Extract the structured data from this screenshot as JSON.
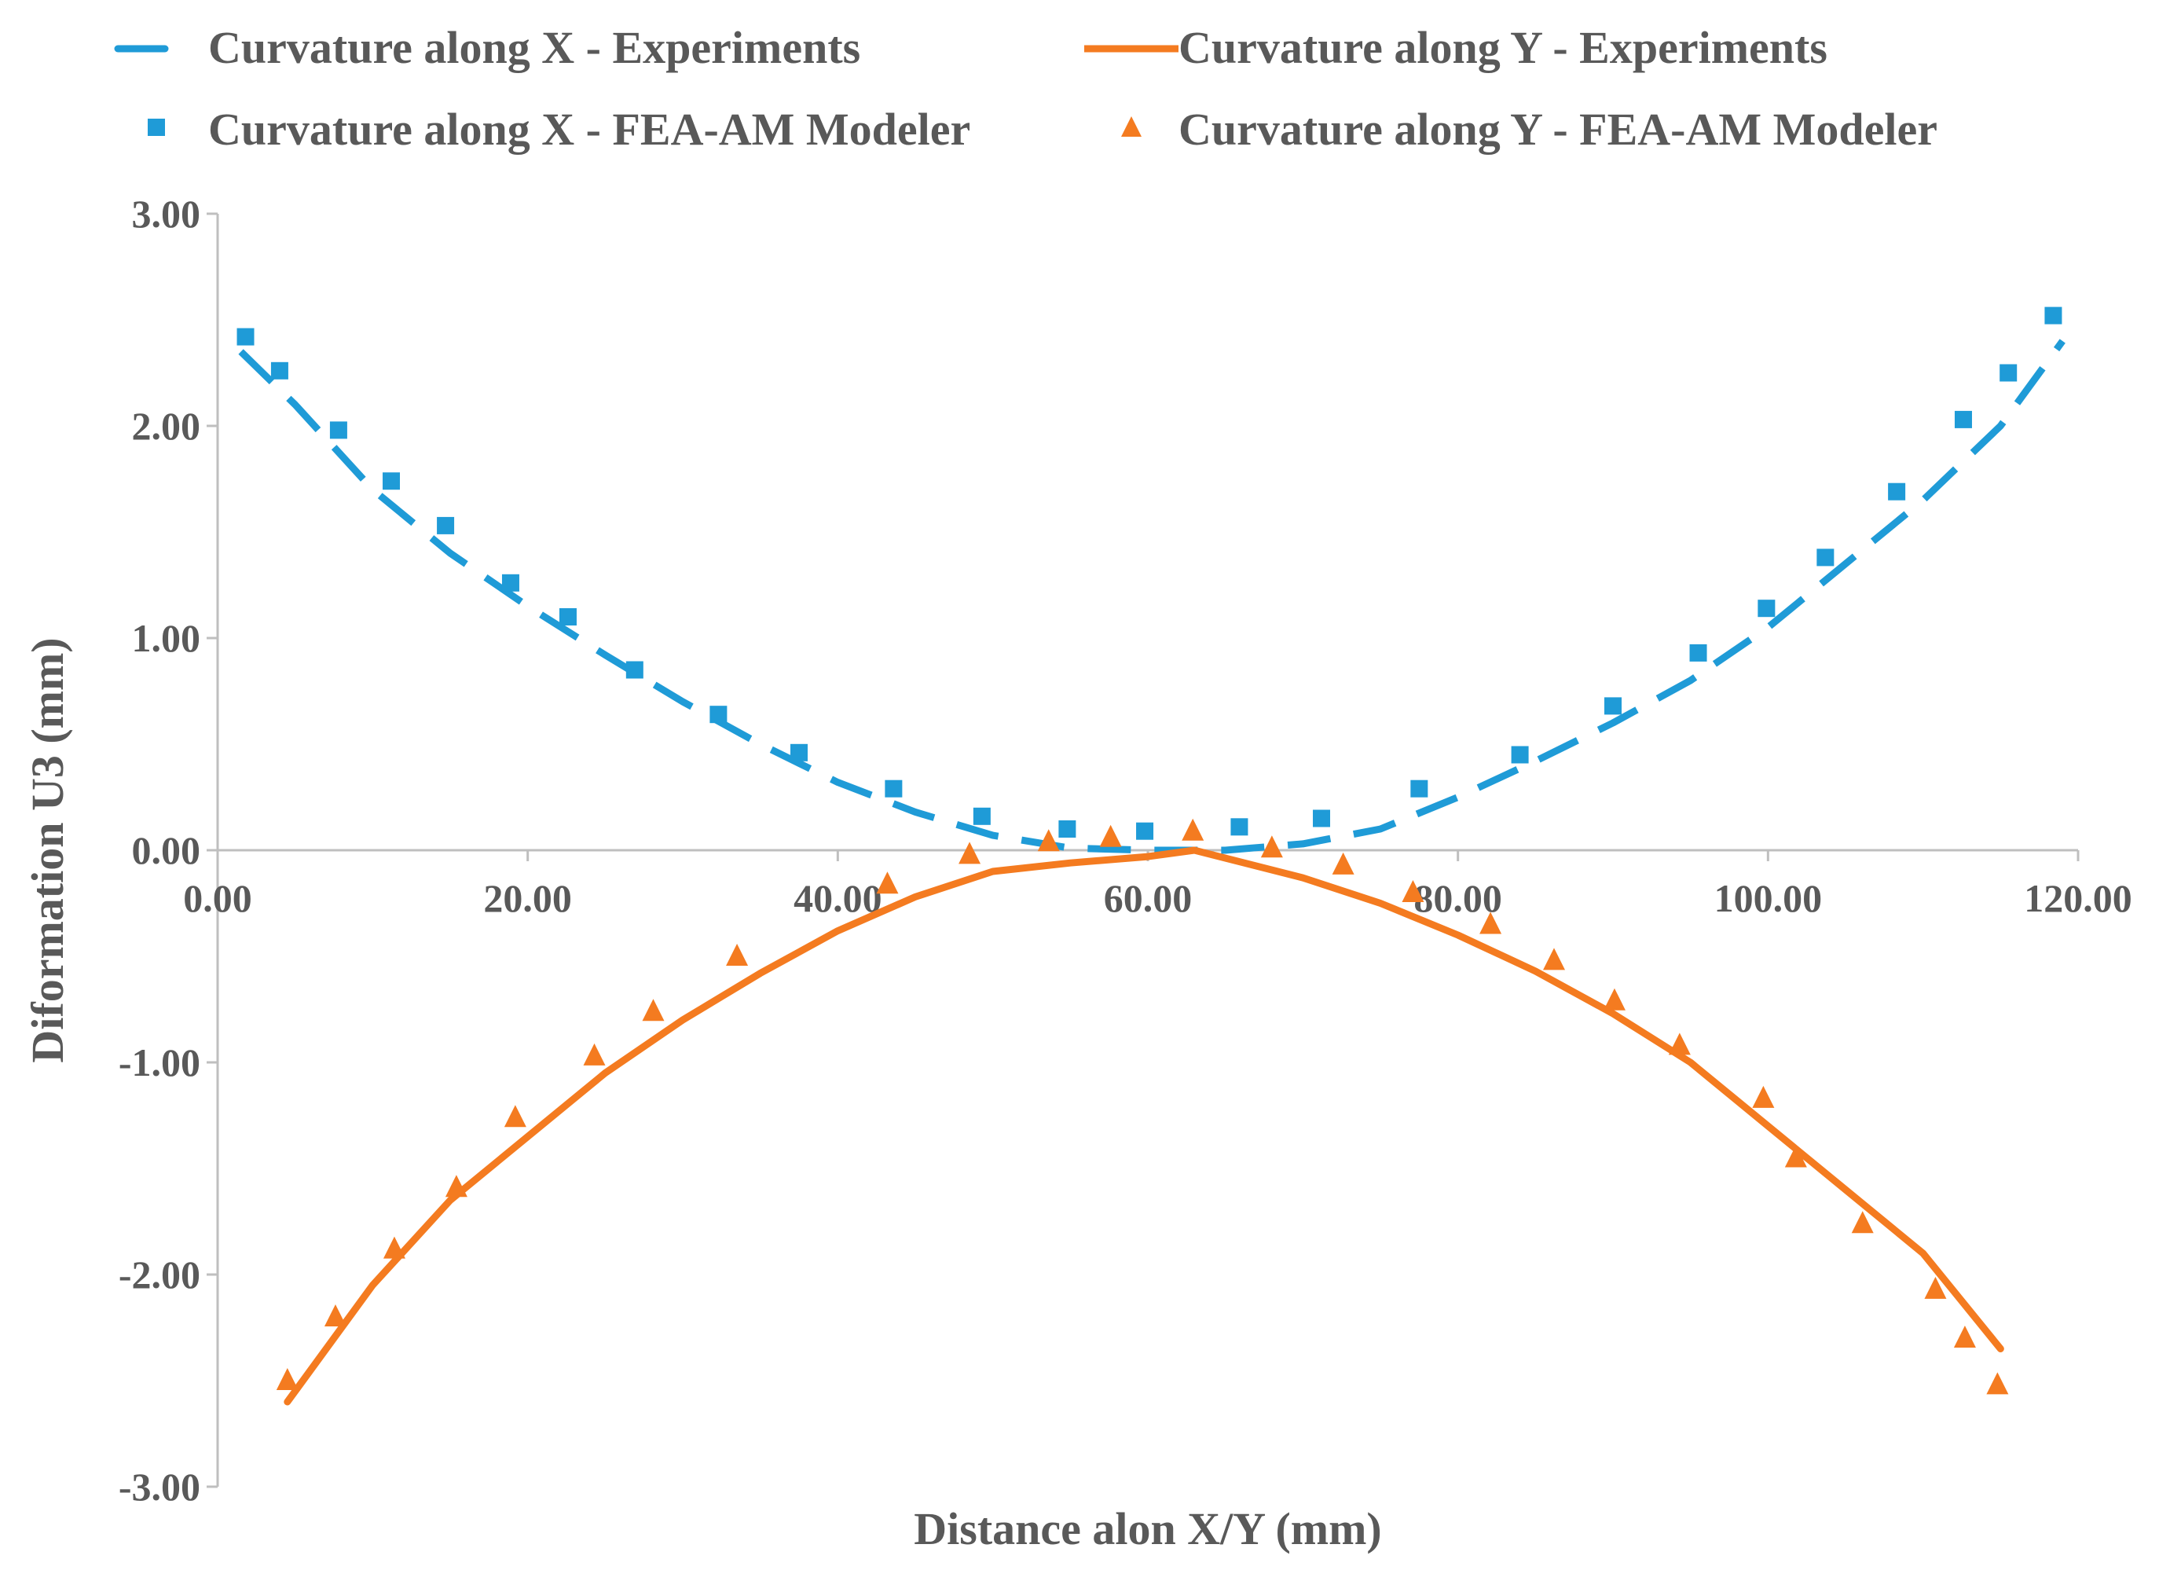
{
  "chart_data": {
    "type": "line",
    "title": "",
    "xlabel": "Distance alon X/Y (mm)",
    "ylabel": "Diformation U3 (mm)",
    "xlim": [
      0,
      120
    ],
    "ylim": [
      -3,
      3
    ],
    "x_ticks": [
      0,
      20,
      40,
      60,
      80,
      100,
      120
    ],
    "x_tick_labels": [
      "0.00",
      "20.00",
      "40.00",
      "60.00",
      "80.00",
      "100.00",
      "120.00"
    ],
    "y_ticks": [
      3,
      2,
      1,
      0,
      -1,
      -2,
      -3
    ],
    "y_tick_labels": [
      "3.00",
      "2.00",
      "1.00",
      "0.00",
      "-1.00",
      "-2.00",
      "-3.00"
    ],
    "grid": false,
    "legend_position": "top",
    "series": [
      {
        "name": "Curvature along X - Experiments",
        "style": "dashed-line",
        "color": "#1F9BD7",
        "x": [
          1.5,
          5,
          10,
          15,
          20,
          25,
          30,
          35,
          40,
          45,
          50,
          55,
          60,
          65,
          70,
          75,
          80,
          85,
          90,
          95,
          100,
          105,
          110,
          115,
          119
        ],
        "y": [
          2.35,
          2.1,
          1.7,
          1.4,
          1.15,
          0.92,
          0.7,
          0.5,
          0.32,
          0.18,
          0.07,
          0.01,
          0.0,
          0.0,
          0.03,
          0.1,
          0.25,
          0.42,
          0.6,
          0.8,
          1.05,
          1.35,
          1.65,
          2.0,
          2.4
        ]
      },
      {
        "name": "Curvature along Y - Experiments",
        "style": "solid-line",
        "color": "#F47B20",
        "x": [
          4.5,
          10,
          15,
          20,
          25,
          30,
          35,
          40,
          45,
          50,
          55,
          60,
          63,
          70,
          75,
          80,
          85,
          90,
          95,
          100,
          105,
          110,
          115
        ],
        "y": [
          -2.6,
          -2.05,
          -1.65,
          -1.35,
          -1.05,
          -0.8,
          -0.58,
          -0.38,
          -0.22,
          -0.1,
          -0.06,
          -0.03,
          0.0,
          -0.13,
          -0.25,
          -0.4,
          -0.57,
          -0.77,
          -1.0,
          -1.3,
          -1.6,
          -1.9,
          -2.35
        ]
      },
      {
        "name": "Curvature along X - FEA-AM Modeler",
        "style": "square-marker",
        "color": "#1F9BD7",
        "x": [
          1.8,
          4,
          7.8,
          11.2,
          14.7,
          18.9,
          22.6,
          26.9,
          32.3,
          37.5,
          43.6,
          49.3,
          54.8,
          59.8,
          65.9,
          71.2,
          77.5,
          84,
          90,
          95.5,
          99.9,
          103.7,
          108.3,
          112.6,
          115.5,
          118.4
        ],
        "y": [
          2.42,
          2.26,
          1.98,
          1.74,
          1.53,
          1.26,
          1.1,
          0.85,
          0.64,
          0.46,
          0.29,
          0.16,
          0.1,
          0.09,
          0.11,
          0.15,
          0.29,
          0.45,
          0.68,
          0.93,
          1.14,
          1.38,
          1.69,
          2.03,
          2.25,
          2.52
        ]
      },
      {
        "name": "Curvature along Y - FEA-AM Modeler",
        "style": "triangle-marker",
        "color": "#F47B20",
        "x": [
          4.5,
          7.6,
          11.4,
          15.4,
          19.2,
          24.3,
          28.1,
          33.5,
          43.2,
          48.5,
          53.6,
          57.6,
          62.9,
          68,
          72.6,
          77.1,
          82.1,
          86.2,
          90.1,
          94.3,
          99.7,
          101.8,
          106.1,
          110.8,
          112.7,
          114.8
        ],
        "y": [
          -2.5,
          -2.2,
          -1.88,
          -1.59,
          -1.26,
          -0.97,
          -0.76,
          -0.5,
          -0.16,
          -0.02,
          0.04,
          0.06,
          0.09,
          0.01,
          -0.07,
          -0.2,
          -0.35,
          -0.52,
          -0.71,
          -0.92,
          -1.17,
          -1.45,
          -1.76,
          -2.07,
          -2.3,
          -2.52
        ]
      }
    ]
  }
}
